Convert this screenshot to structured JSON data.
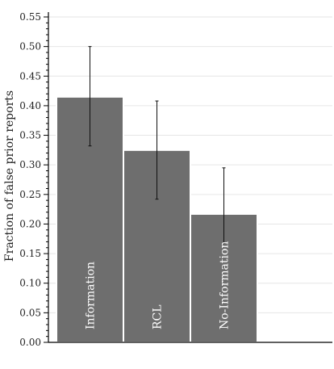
{
  "chart_data": {
    "type": "bar",
    "title": "",
    "xlabel": "",
    "ylabel": "Fraction of false prior reports",
    "categories": [
      "Information",
      "RCL",
      "No-Information"
    ],
    "values": [
      0.415,
      0.325,
      0.217
    ],
    "error_low": [
      0.332,
      0.242,
      0.167
    ],
    "error_high": [
      0.5,
      0.408,
      0.295
    ],
    "ylim": [
      0,
      0.55
    ],
    "yticks": [
      0.0,
      0.05,
      0.1,
      0.15,
      0.2,
      0.25,
      0.3,
      0.35,
      0.4,
      0.45,
      0.5,
      0.55
    ],
    "grid": true,
    "bar_color": "#6e6e6e",
    "bar_edge_color": "#ffffff",
    "grid_color": "#e6e6e6",
    "axis_color": "#000000"
  }
}
